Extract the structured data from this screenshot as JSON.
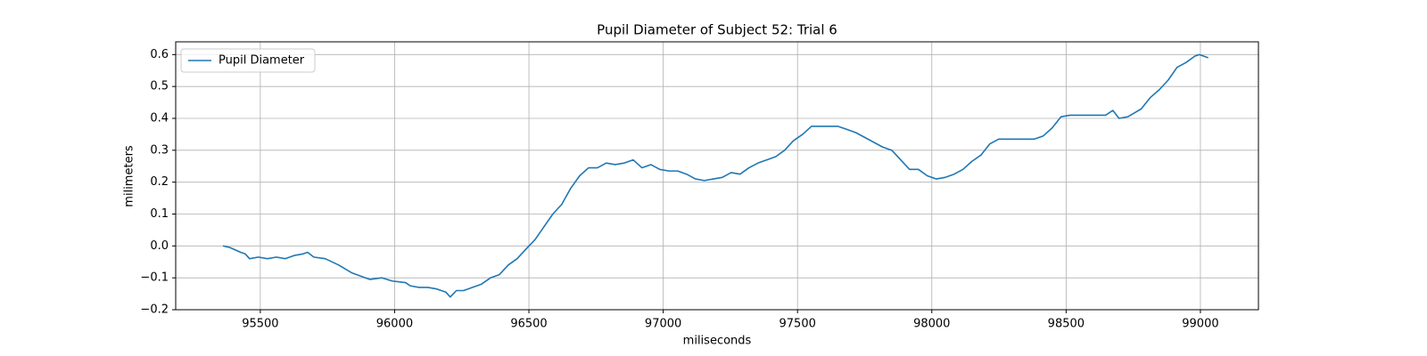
{
  "chart_data": {
    "type": "line",
    "title": "Pupil Diameter of Subject 52: Trial 6",
    "x_label": "miliseconds",
    "y_label": "milimeters",
    "x": [
      95361,
      95387,
      95427,
      95444,
      95460,
      95493,
      95527,
      95560,
      95593,
      95626,
      95659,
      95676,
      95699,
      95742,
      95792,
      95842,
      95908,
      95952,
      95991,
      96041,
      96058,
      96091,
      96124,
      96157,
      96191,
      96207,
      96230,
      96257,
      96290,
      96323,
      96357,
      96390,
      96423,
      96456,
      96489,
      96523,
      96556,
      96589,
      96622,
      96655,
      96689,
      96722,
      96755,
      96788,
      96821,
      96855,
      96888,
      96921,
      96954,
      96987,
      97021,
      97054,
      97087,
      97120,
      97153,
      97187,
      97220,
      97253,
      97286,
      97319,
      97353,
      97386,
      97419,
      97452,
      97485,
      97519,
      97552,
      97585,
      97618,
      97651,
      97685,
      97718,
      97751,
      97784,
      97817,
      97851,
      97884,
      97917,
      97950,
      97983,
      98017,
      98050,
      98083,
      98116,
      98149,
      98183,
      98216,
      98249,
      98315,
      98382,
      98415,
      98448,
      98481,
      98515,
      98581,
      98647,
      98674,
      98697,
      98730,
      98780,
      98813,
      98847,
      98880,
      98913,
      98946,
      98979,
      98996,
      99029
    ],
    "series": [
      {
        "name": "Pupil Diameter",
        "color": "#1f77b4",
        "values": [
          0.0,
          -0.005,
          -0.02,
          -0.025,
          -0.04,
          -0.035,
          -0.04,
          -0.035,
          -0.04,
          -0.03,
          -0.025,
          -0.02,
          -0.035,
          -0.04,
          -0.06,
          -0.085,
          -0.105,
          -0.1,
          -0.11,
          -0.115,
          -0.125,
          -0.13,
          -0.13,
          -0.135,
          -0.145,
          -0.16,
          -0.14,
          -0.14,
          -0.13,
          -0.12,
          -0.1,
          -0.09,
          -0.06,
          -0.04,
          -0.01,
          0.02,
          0.06,
          0.1,
          0.13,
          0.18,
          0.22,
          0.245,
          0.245,
          0.26,
          0.255,
          0.26,
          0.27,
          0.245,
          0.255,
          0.24,
          0.235,
          0.235,
          0.225,
          0.21,
          0.205,
          0.21,
          0.215,
          0.23,
          0.225,
          0.245,
          0.26,
          0.27,
          0.28,
          0.3,
          0.33,
          0.35,
          0.375,
          0.375,
          0.375,
          0.375,
          0.365,
          0.355,
          0.34,
          0.325,
          0.31,
          0.3,
          0.27,
          0.24,
          0.24,
          0.22,
          0.21,
          0.215,
          0.225,
          0.24,
          0.265,
          0.285,
          0.32,
          0.335,
          0.335,
          0.335,
          0.345,
          0.37,
          0.405,
          0.41,
          0.41,
          0.41,
          0.425,
          0.4,
          0.405,
          0.43,
          0.465,
          0.49,
          0.52,
          0.56,
          0.575,
          0.595,
          0.6,
          0.59
        ]
      }
    ],
    "xlim": [
      95185,
      99216
    ],
    "ylim": [
      -0.2,
      0.64
    ],
    "xticks": [
      95500,
      96000,
      96500,
      97000,
      97500,
      98000,
      98500,
      99000
    ],
    "yticks": [
      {
        "value": -0.2,
        "label": "−0.2"
      },
      {
        "value": -0.1,
        "label": "−0.1"
      },
      {
        "value": 0.0,
        "label": "0.0"
      },
      0.1,
      0.2,
      0.3,
      0.4,
      0.5,
      0.6
    ],
    "grid": true,
    "legend": "upper left"
  }
}
